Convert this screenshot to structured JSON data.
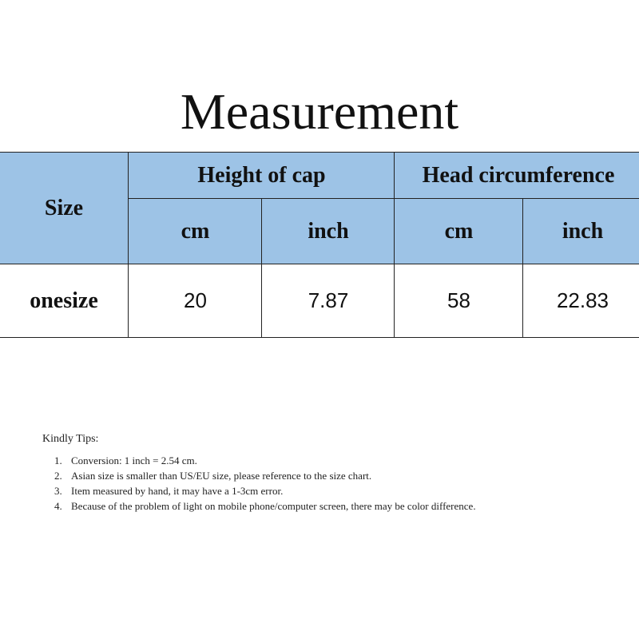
{
  "title": "Measurement",
  "table": {
    "size_header": "Size",
    "groups": [
      "Height of cap",
      "Head circumference"
    ],
    "units": [
      "cm",
      "inch",
      "cm",
      "inch"
    ],
    "rows": [
      {
        "size": "onesize",
        "values": [
          "20",
          "7.87",
          "58",
          "22.83"
        ]
      }
    ]
  },
  "tips": {
    "heading": "Kindly Tips:",
    "items": [
      "Conversion: 1 inch = 2.54 cm.",
      "Asian size is smaller than US/EU size, please reference to the size chart.",
      "Item measured by hand, it may have a 1-3cm error.",
      "Because of the problem of light on mobile phone/computer screen, there may be color difference."
    ]
  },
  "colors": {
    "header_bg": "#9dc3e6"
  }
}
